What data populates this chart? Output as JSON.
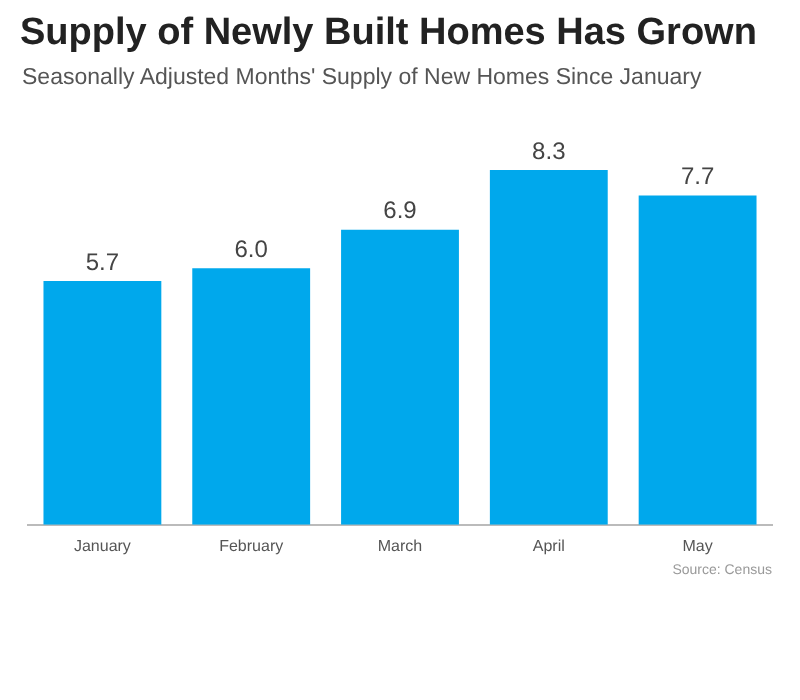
{
  "chart_data": {
    "type": "bar",
    "title": "Supply of Newly Built Homes Has Grown",
    "subtitle": "Seasonally Adjusted Months' Supply of New Homes Since January",
    "categories": [
      "January",
      "February",
      "March",
      "April",
      "May"
    ],
    "values": [
      5.7,
      6.0,
      6.9,
      8.3,
      7.7
    ],
    "value_labels": [
      "5.7",
      "6.0",
      "6.9",
      "8.3",
      "7.7"
    ],
    "color": "#00a8ec",
    "grid": false,
    "legend": false,
    "annotations": [
      "Source: Census"
    ]
  }
}
